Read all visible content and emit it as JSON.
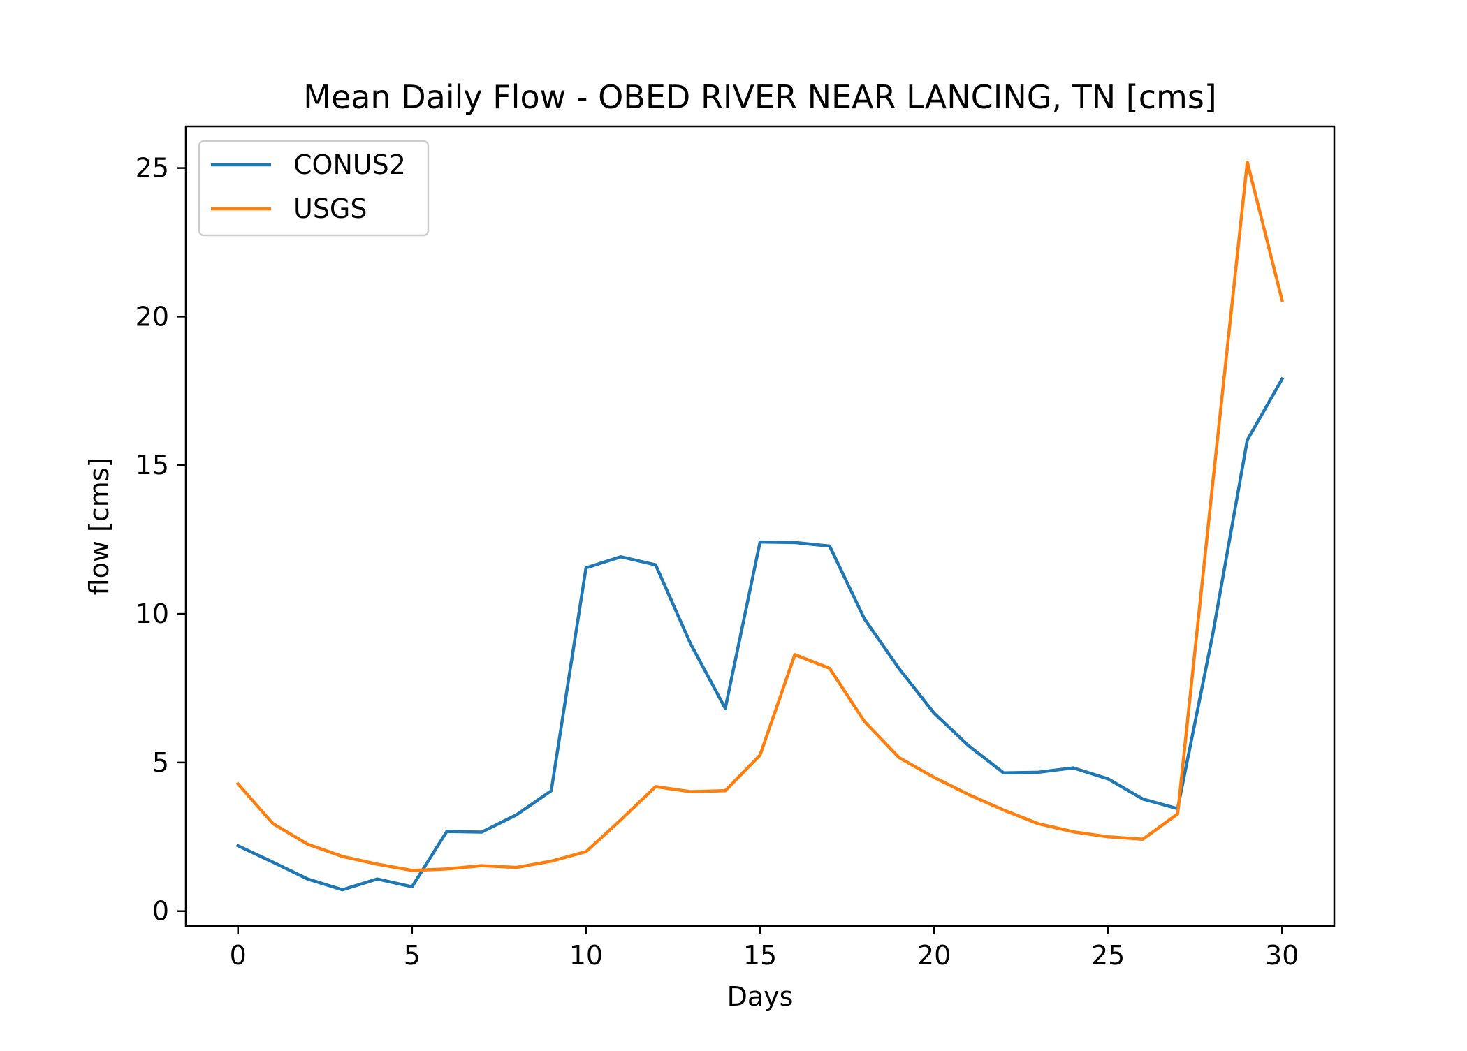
{
  "chart_data": {
    "type": "line",
    "title": "Mean Daily Flow - OBED RIVER NEAR LANCING, TN [cms]",
    "xlabel": "Days",
    "ylabel": "flow [cms]",
    "xlim": [
      -1.5,
      31.5
    ],
    "ylim": [
      -0.5,
      26.4
    ],
    "xticks": [
      0,
      5,
      10,
      15,
      20,
      25,
      30
    ],
    "yticks": [
      0,
      5,
      10,
      15,
      20,
      25
    ],
    "grid": false,
    "legend_position": "upper-left",
    "x": [
      0,
      1,
      2,
      3,
      4,
      5,
      6,
      7,
      8,
      9,
      10,
      11,
      12,
      13,
      14,
      15,
      16,
      17,
      18,
      19,
      20,
      21,
      22,
      23,
      24,
      25,
      26,
      27,
      28,
      29,
      30
    ],
    "series": [
      {
        "name": "CONUS2",
        "color": "#1f77b4",
        "values": [
          2.2,
          1.65,
          1.08,
          0.72,
          1.08,
          0.82,
          2.68,
          2.66,
          3.24,
          4.05,
          11.55,
          11.92,
          11.65,
          9.0,
          6.82,
          12.42,
          12.4,
          12.28,
          9.83,
          8.15,
          6.66,
          5.56,
          4.65,
          4.67,
          4.82,
          4.45,
          3.77,
          3.45,
          9.26,
          15.85,
          17.9
        ]
      },
      {
        "name": "USGS",
        "color": "#ff7f0e",
        "values": [
          4.28,
          2.95,
          2.25,
          1.84,
          1.58,
          1.37,
          1.42,
          1.53,
          1.47,
          1.68,
          2.0,
          3.07,
          4.19,
          4.02,
          4.05,
          5.25,
          8.63,
          8.17,
          6.38,
          5.16,
          4.5,
          3.92,
          3.4,
          2.94,
          2.67,
          2.5,
          2.42,
          3.27,
          14.3,
          25.2,
          20.55
        ]
      }
    ]
  }
}
